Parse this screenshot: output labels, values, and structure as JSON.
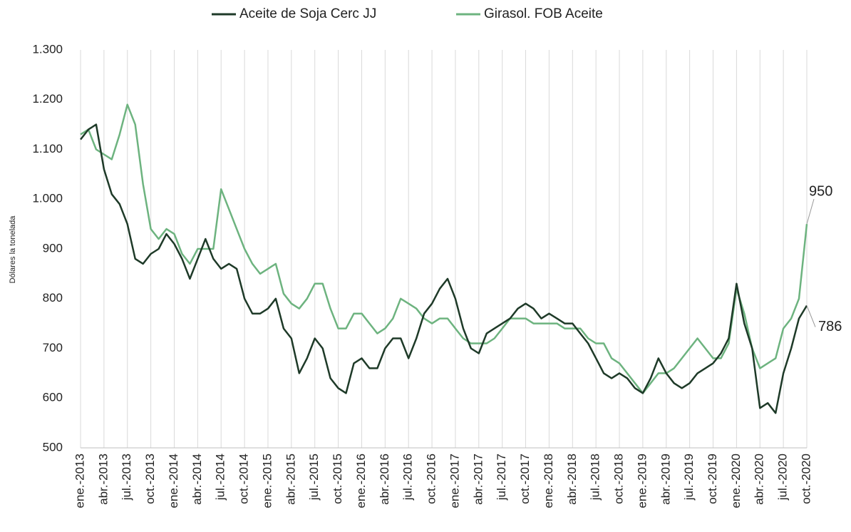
{
  "chart_data": {
    "type": "line",
    "y_label": "Dólares la tonelada",
    "categories": [
      "ene.-2013",
      null,
      null,
      "abr.-2013",
      null,
      null,
      "jul.-2013",
      null,
      null,
      "oct.-2013",
      null,
      null,
      "ene.-2014",
      null,
      null,
      "abr.-2014",
      null,
      null,
      "jul.-2014",
      null,
      null,
      "oct.-2014",
      null,
      null,
      "ene.-2015",
      null,
      null,
      "abr.-2015",
      null,
      null,
      "jul.-2015",
      null,
      null,
      "oct.-2015",
      null,
      null,
      "ene.-2016",
      null,
      null,
      "abr.-2016",
      null,
      null,
      "jul.-2016",
      null,
      null,
      "oct.-2016",
      null,
      null,
      "ene.-2017",
      null,
      null,
      "abr.-2017",
      null,
      null,
      "jul.-2017",
      null,
      null,
      "oct.-2017",
      null,
      null,
      "ene.-2018",
      null,
      null,
      "abr.-2018",
      null,
      null,
      "jul.-2018",
      null,
      null,
      "oct.-2018",
      null,
      null,
      "ene.-2019",
      null,
      null,
      "abr.-2019",
      null,
      null,
      "jul.-2019",
      null,
      null,
      "oct.-2019",
      null,
      null,
      "ene.-2020",
      null,
      null,
      "abr.-2020",
      null,
      null,
      "jul.-2020",
      null,
      null,
      "oct.-2020"
    ],
    "series": [
      {
        "name": "Aceite de Soja Cerc JJ",
        "color": "#1e3a28",
        "values": [
          1120,
          1140,
          1150,
          1060,
          1010,
          990,
          950,
          880,
          870,
          890,
          900,
          930,
          910,
          880,
          840,
          880,
          920,
          880,
          860,
          870,
          860,
          800,
          770,
          770,
          780,
          800,
          740,
          720,
          650,
          680,
          720,
          700,
          640,
          620,
          610,
          670,
          680,
          660,
          660,
          700,
          720,
          720,
          680,
          720,
          770,
          790,
          820,
          840,
          800,
          740,
          700,
          690,
          730,
          740,
          750,
          760,
          780,
          790,
          780,
          760,
          770,
          760,
          750,
          750,
          730,
          710,
          680,
          650,
          640,
          650,
          640,
          620,
          610,
          640,
          680,
          650,
          630,
          620,
          630,
          650,
          660,
          670,
          690,
          720,
          830,
          750,
          700,
          580,
          590,
          570,
          650,
          700,
          760,
          786
        ]
      },
      {
        "name": "Girasol. FOB Aceite",
        "color": "#6db37f",
        "values": [
          1130,
          1140,
          1100,
          1090,
          1080,
          1130,
          1190,
          1150,
          1030,
          940,
          920,
          940,
          930,
          890,
          870,
          900,
          900,
          900,
          1020,
          980,
          940,
          900,
          870,
          850,
          860,
          870,
          810,
          790,
          780,
          800,
          830,
          830,
          780,
          740,
          740,
          770,
          770,
          750,
          730,
          740,
          760,
          800,
          790,
          780,
          760,
          750,
          760,
          760,
          740,
          720,
          710,
          710,
          710,
          720,
          740,
          760,
          760,
          760,
          750,
          750,
          750,
          750,
          740,
          740,
          740,
          720,
          710,
          710,
          680,
          670,
          650,
          630,
          610,
          630,
          650,
          650,
          660,
          680,
          700,
          720,
          700,
          680,
          680,
          710,
          820,
          770,
          700,
          660,
          670,
          680,
          740,
          760,
          800,
          950
        ]
      }
    ],
    "annotations": [
      {
        "text": "950",
        "series": 1
      },
      {
        "text": "786",
        "series": 0
      }
    ],
    "ylim": [
      500,
      1300
    ],
    "yticks": [
      500,
      600,
      700,
      800,
      900,
      {
        "value": 1000,
        "label": "1.000"
      },
      {
        "value": 1100,
        "label": "1.100"
      },
      {
        "value": 1200,
        "label": "1.200"
      },
      {
        "value": 1300,
        "label": "1.300"
      }
    ],
    "grid": "x"
  }
}
